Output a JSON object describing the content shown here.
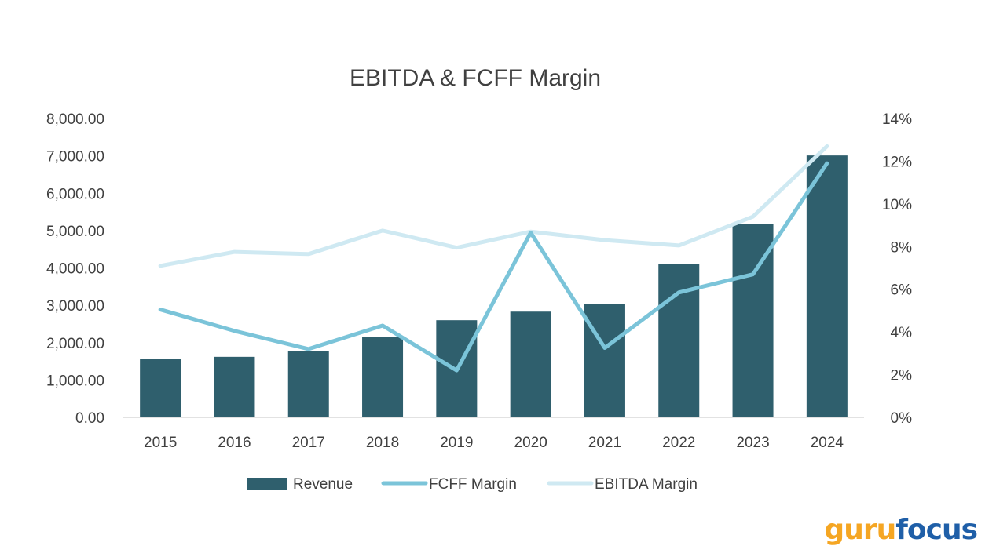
{
  "chart_data": {
    "type": "bar",
    "title": "EBITDA & FCFF Margin",
    "categories": [
      "2015",
      "2016",
      "2017",
      "2018",
      "2019",
      "2020",
      "2021",
      "2022",
      "2023",
      "2024"
    ],
    "series": [
      {
        "name": "Revenue",
        "type": "bar",
        "axis": "left",
        "color": "#2f5f6d",
        "values": [
          1560,
          1620,
          1770,
          2160,
          2600,
          2830,
          3040,
          4110,
          5180,
          7010
        ]
      },
      {
        "name": "FCFF Margin",
        "type": "line",
        "axis": "right",
        "color": "#7bc4d9",
        "values": [
          5.05,
          4.05,
          3.2,
          4.3,
          2.2,
          8.65,
          3.25,
          5.85,
          6.7,
          11.9
        ]
      },
      {
        "name": "EBITDA Margin",
        "type": "line",
        "axis": "right",
        "color": "#cfe9f2",
        "values": [
          7.1,
          7.75,
          7.65,
          8.75,
          7.95,
          8.7,
          8.3,
          8.05,
          9.4,
          12.7
        ]
      }
    ],
    "y_left": {
      "ylim": [
        0,
        8000
      ],
      "ticks": [
        "0.00",
        "1,000.00",
        "2,000.00",
        "3,000.00",
        "4,000.00",
        "5,000.00",
        "6,000.00",
        "7,000.00",
        "8,000.00"
      ]
    },
    "y_right": {
      "ylim": [
        0,
        14
      ],
      "ticks": [
        "0%",
        "2%",
        "4%",
        "6%",
        "8%",
        "10%",
        "12%",
        "14%"
      ]
    },
    "grid": false,
    "legend_position": "bottom"
  },
  "logo": {
    "part1": "guru",
    "part2": "focus"
  }
}
